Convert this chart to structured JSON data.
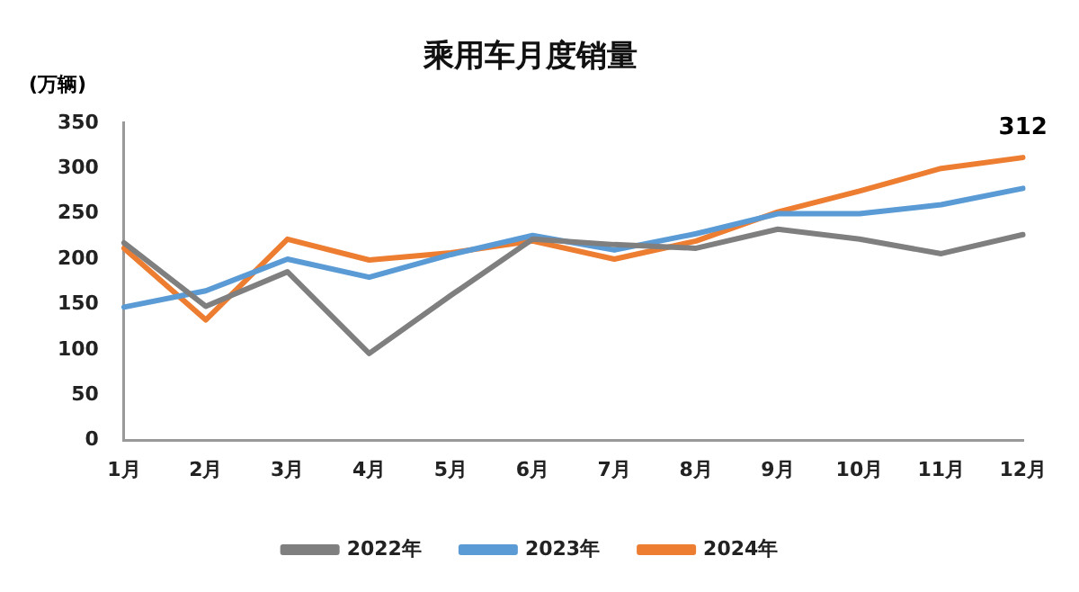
{
  "chart_data": {
    "type": "line",
    "title": "乘用车月度销量",
    "ylabel": "(万辆)",
    "categories": [
      "1月",
      "2月",
      "3月",
      "4月",
      "5月",
      "6月",
      "7月",
      "8月",
      "9月",
      "10月",
      "11月",
      "12月"
    ],
    "series": [
      {
        "name": "2022年",
        "color": "#7f7f7f",
        "values": [
          218,
          148,
          186,
          96,
          160,
          222,
          216,
          212,
          233,
          222,
          206,
          227
        ]
      },
      {
        "name": "2023年",
        "color": "#5b9bd5",
        "values": [
          147,
          165,
          200,
          180,
          205,
          226,
          210,
          228,
          250,
          250,
          260,
          278
        ]
      },
      {
        "name": "2024年",
        "color": "#ed7d31",
        "values": [
          212,
          133,
          222,
          199,
          207,
          220,
          200,
          220,
          252,
          275,
          300,
          312
        ]
      }
    ],
    "ylim": [
      0,
      350
    ],
    "yticks": [
      0,
      50,
      100,
      150,
      200,
      250,
      300,
      350
    ],
    "grid": false,
    "legend": "bottom",
    "marker": "none",
    "line_style": "solid",
    "annotations": [
      {
        "text": "312",
        "x": "12月",
        "y": 312
      }
    ]
  }
}
